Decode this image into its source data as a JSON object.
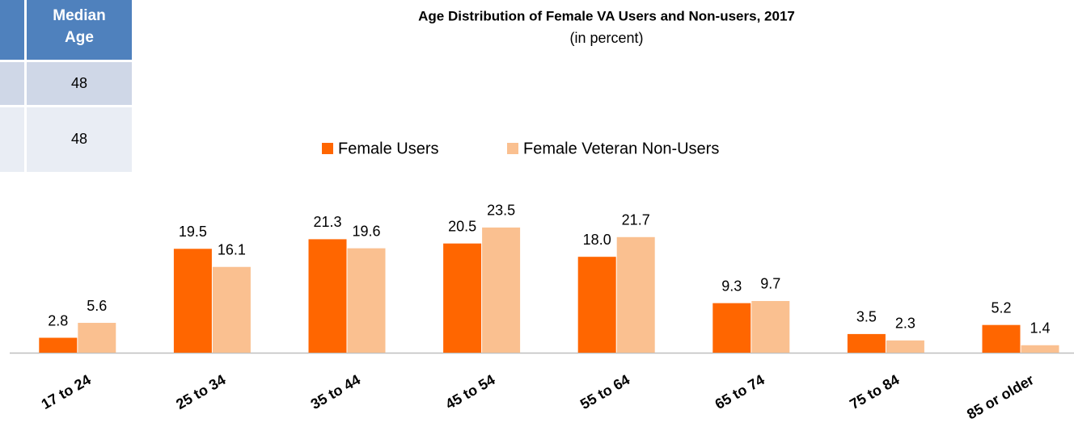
{
  "table": {
    "header": "Median Age",
    "rows": [
      "48",
      "48"
    ]
  },
  "chart_data": {
    "type": "bar",
    "title": "Age Distribution of Female VA Users and Non-users, 2017",
    "subtitle": "(in percent)",
    "categories": [
      "17 to 24",
      "25 to 34",
      "35 to 44",
      "45 to 54",
      "55 to 64",
      "65 to 74",
      "75 to 84",
      "85 or older"
    ],
    "series": [
      {
        "name": "Female Users",
        "color": "#ff6600",
        "values": [
          2.8,
          19.5,
          21.3,
          20.5,
          18.0,
          9.3,
          3.5,
          5.2
        ],
        "value_labels": [
          "2.8",
          "19.5",
          "21.3",
          "20.5",
          "18.0",
          "9.3",
          "3.5",
          "5.2"
        ]
      },
      {
        "name": "Female Veteran Non-Users",
        "color": "#fac090",
        "values": [
          5.6,
          16.1,
          19.6,
          23.5,
          21.7,
          9.7,
          2.3,
          1.4
        ],
        "value_labels": [
          "5.6",
          "16.1",
          "19.6",
          "23.5",
          "21.7",
          "9.7",
          "2.3",
          "1.4"
        ]
      }
    ],
    "legend": "top"
  }
}
